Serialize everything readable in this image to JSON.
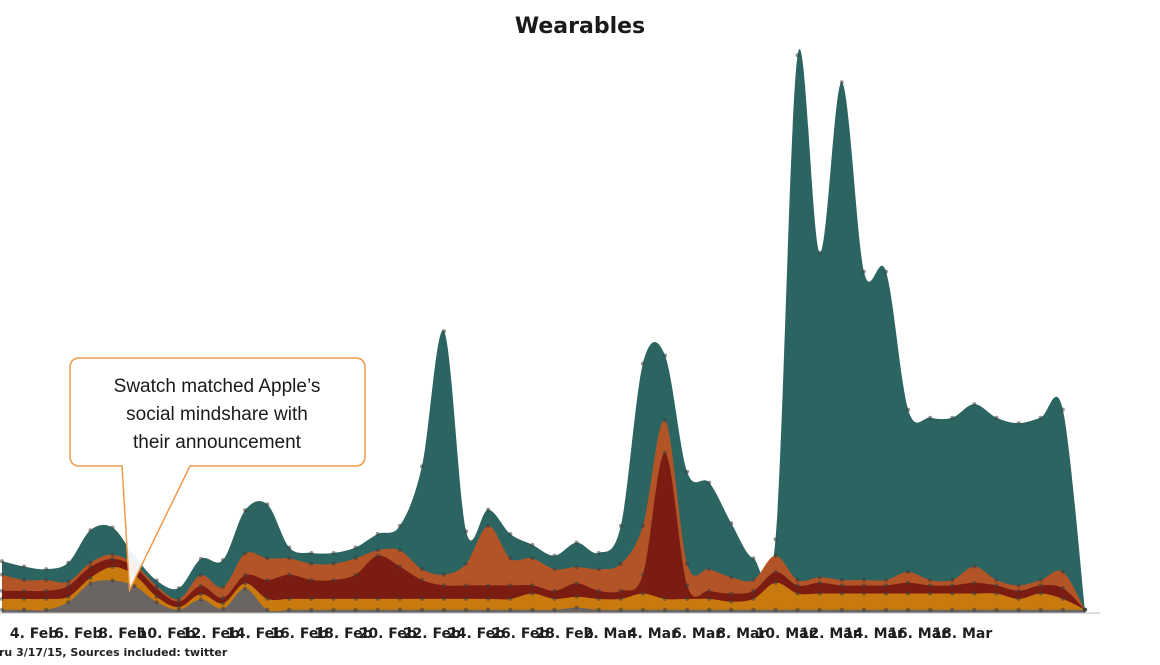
{
  "chart_data": {
    "type": "area",
    "stacked": true,
    "smooth": true,
    "title": "Wearables",
    "xlabel": "",
    "ylabel": "",
    "ylim": [
      0,
      100
    ],
    "x": [
      0,
      1,
      2,
      3,
      4,
      5,
      6,
      7,
      8,
      9,
      10,
      11,
      12,
      13,
      14,
      15,
      16,
      17,
      18,
      19,
      20,
      21,
      22,
      23,
      24,
      25,
      26,
      27,
      28,
      29,
      30,
      31,
      32,
      33,
      34,
      35,
      36,
      37,
      38,
      39,
      40,
      41,
      42,
      43,
      44,
      45,
      46,
      47,
      48,
      49
    ],
    "tick_labels": [
      {
        "x": 1,
        "label": "4. Feb"
      },
      {
        "x": 3,
        "label": "6. Feb"
      },
      {
        "x": 5,
        "label": "8. Feb"
      },
      {
        "x": 7,
        "label": "10. Feb"
      },
      {
        "x": 9,
        "label": "12. Feb"
      },
      {
        "x": 11,
        "label": "14. Feb"
      },
      {
        "x": 13,
        "label": "16. Feb"
      },
      {
        "x": 15,
        "label": "18. Feb"
      },
      {
        "x": 17,
        "label": "20. Feb"
      },
      {
        "x": 19,
        "label": "22. Feb"
      },
      {
        "x": 21,
        "label": "24. Feb"
      },
      {
        "x": 23,
        "label": "26. Feb"
      },
      {
        "x": 25,
        "label": "28. Feb"
      },
      {
        "x": 27,
        "label": "2. Mar"
      },
      {
        "x": 29,
        "label": "4. Mar"
      },
      {
        "x": 31,
        "label": "6. Mar"
      },
      {
        "x": 33,
        "label": "8. Mar"
      },
      {
        "x": 35,
        "label": "10. Mar"
      },
      {
        "x": 37,
        "label": "12. Mar"
      },
      {
        "x": 39,
        "label": "14. Mar"
      },
      {
        "x": 41,
        "label": "16. Mar"
      },
      {
        "x": 43,
        "label": "18. Mar"
      }
    ],
    "series": [
      {
        "name": "Gray",
        "color": "#6a6462",
        "values": [
          0.6,
          0.6,
          0.6,
          2,
          5.5,
          6,
          5,
          2,
          0.6,
          2.5,
          0.8,
          4.5,
          0.6,
          0.6,
          0.6,
          0.6,
          0.6,
          0.6,
          0.6,
          0.6,
          0.6,
          0.6,
          0.6,
          0.6,
          0.6,
          0.6,
          1,
          0.6,
          0.6,
          0.6,
          0.6,
          0.6,
          0.6,
          0.6,
          0.6,
          0.6,
          0.6,
          0.6,
          0.6,
          0.6,
          0.6,
          0.6,
          0.6,
          0.6,
          0.6,
          0.6,
          0.6,
          0.6,
          0.6,
          0.6
        ]
      },
      {
        "name": "Orange",
        "color": "#c87a0e",
        "values": [
          2,
          2,
          2,
          1,
          1,
          2.5,
          2,
          1,
          0.5,
          1,
          1,
          1,
          2,
          2,
          2,
          2,
          2,
          2,
          2,
          2,
          2,
          2,
          2,
          2,
          3,
          2,
          2,
          2,
          2,
          3,
          2,
          2,
          2,
          1.5,
          2,
          5,
          3,
          3,
          3,
          3,
          3,
          3,
          3,
          3,
          3,
          3,
          2,
          3,
          2,
          0
        ]
      },
      {
        "name": "Dark red",
        "color": "#7a1c12",
        "values": [
          1.5,
          1.5,
          1.5,
          2,
          2,
          1.5,
          1.5,
          1.5,
          1,
          1.5,
          1,
          1.5,
          3.5,
          4.5,
          3.5,
          3.5,
          4.5,
          8,
          6,
          3.5,
          2.5,
          2.5,
          2.5,
          2.5,
          1.5,
          1.5,
          2.5,
          1.5,
          1.5,
          3.5,
          27,
          2.5,
          1.5,
          1.5,
          1.5,
          2,
          1.5,
          2,
          1.5,
          1.5,
          1.5,
          2,
          1.5,
          1.5,
          2,
          1.5,
          1.5,
          1.5,
          2,
          0
        ]
      },
      {
        "name": "Orange-brown",
        "color": "#b35426",
        "values": [
          3,
          2,
          2,
          0.8,
          0.8,
          0.8,
          0.5,
          0.5,
          0.5,
          2,
          2,
          4,
          4,
          3,
          3,
          3,
          3,
          1,
          3,
          2,
          2,
          4,
          11,
          5,
          5,
          4,
          3,
          4,
          5,
          9,
          6,
          4,
          4,
          3,
          2,
          3,
          1,
          1,
          1,
          1,
          1,
          2,
          1,
          1,
          3,
          1,
          1,
          1,
          3,
          0
        ]
      },
      {
        "name": "Teal",
        "color": "#2b6461",
        "values": [
          2.5,
          2.5,
          2,
          3.5,
          6,
          5,
          1.5,
          1,
          2,
          3,
          5,
          8,
          10,
          2,
          2,
          2,
          2,
          3,
          4.5,
          19,
          45,
          6,
          3,
          4.5,
          2.5,
          2.5,
          4.5,
          3,
          7,
          30,
          12,
          17,
          16,
          10,
          4,
          3,
          97,
          60,
          92,
          57,
          57,
          30,
          30,
          30,
          30,
          30,
          30,
          30,
          30,
          0
        ]
      }
    ],
    "annotation": {
      "text_lines": [
        "Swatch matched Apple’s",
        "social mindshare with",
        "their announcement"
      ],
      "points_to_x": 5.5
    },
    "footnote": "ru 3/17/15, Sources included: twitter"
  }
}
